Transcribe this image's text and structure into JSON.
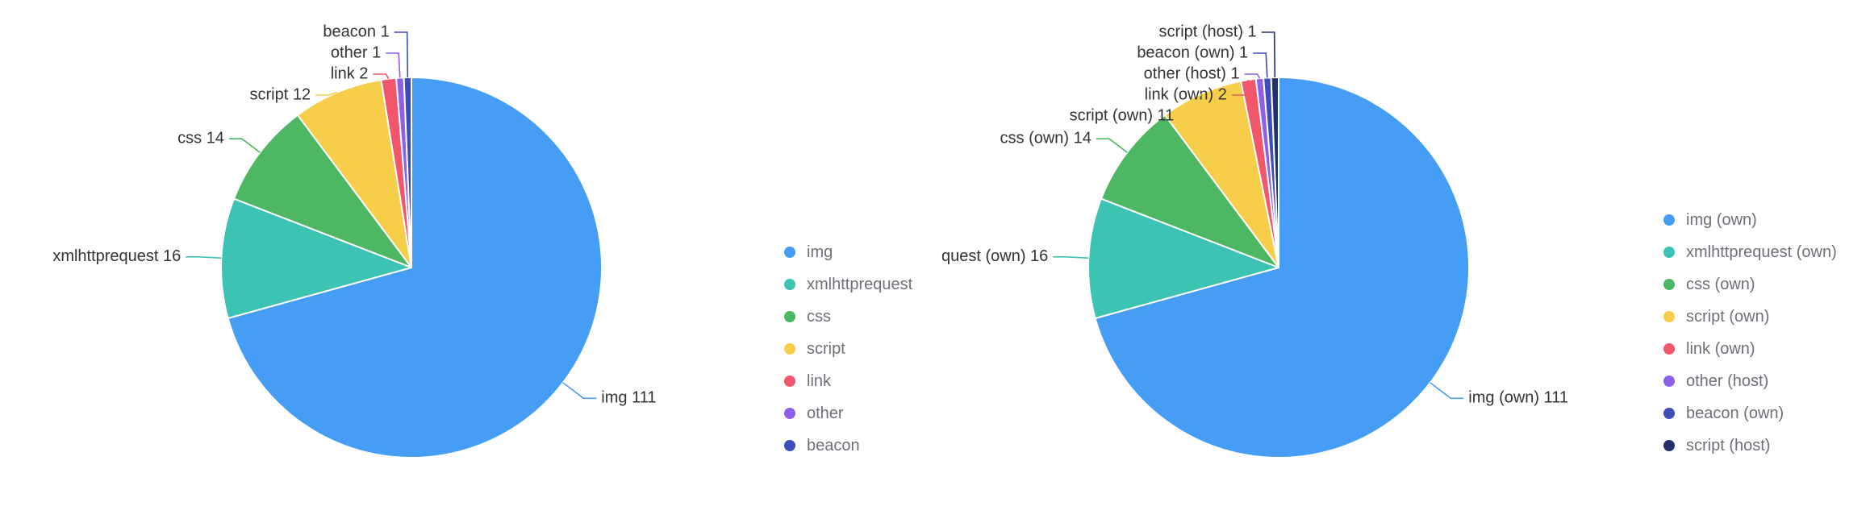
{
  "page": {
    "background": "#ffffff",
    "label_text_color": "#333333",
    "legend_text_color": "#6e7079"
  },
  "chart_data": [
    {
      "type": "pie",
      "title": "",
      "legend_position": "right",
      "start_angle_deg": 0,
      "direction": "clockwise",
      "total": 157,
      "categories": [
        "img",
        "xmlhttprequest",
        "css",
        "script",
        "link",
        "other",
        "beacon"
      ],
      "values": [
        111,
        16,
        14,
        12,
        2,
        1,
        1
      ],
      "labels": [
        "img 111",
        "xmlhttprequest 16",
        "css 14",
        "script 12",
        "link 2",
        "other 1",
        "beacon 1"
      ],
      "colors": [
        "#459df5",
        "#3cc3b4",
        "#4db763",
        "#f6ce49",
        "#f2566b",
        "#8f5fe8",
        "#3d4db7"
      ],
      "legend": [
        "img",
        "xmlhttprequest",
        "css",
        "script",
        "link",
        "other",
        "beacon"
      ]
    },
    {
      "type": "pie",
      "title": "",
      "legend_position": "right",
      "start_angle_deg": 0,
      "direction": "clockwise",
      "total": 157,
      "categories": [
        "img (own)",
        "xmlhttprequest (own)",
        "css (own)",
        "script (own)",
        "link (own)",
        "other (host)",
        "beacon (own)",
        "script (host)"
      ],
      "values": [
        111,
        16,
        14,
        11,
        2,
        1,
        1,
        1
      ],
      "labels": [
        "img (own) 111",
        "quest (own) 16",
        "css (own) 14",
        "script (own) 11",
        "link (own) 2",
        "other (host) 1",
        "beacon (own) 1",
        "script (host) 1"
      ],
      "colors": [
        "#459df5",
        "#3cc3b4",
        "#4db763",
        "#f6ce49",
        "#f2566b",
        "#8f5fe8",
        "#3d4db7",
        "#22306b"
      ],
      "legend": [
        "img (own)",
        "xmlhttprequest (own)",
        "css (own)",
        "script (own)",
        "link (own)",
        "other (host)",
        "beacon (own)",
        "script (host)"
      ]
    }
  ]
}
